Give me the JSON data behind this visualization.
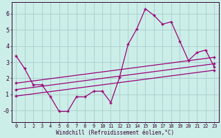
{
  "xlabel": "Windchill (Refroidissement éolien,°C)",
  "bg_color": "#cceee8",
  "grid_color": "#aacccc",
  "line_color": "#990077",
  "spine_color": "#330033",
  "tick_color": "#330033",
  "xlim": [
    -0.5,
    23.5
  ],
  "ylim": [
    -0.7,
    6.7
  ],
  "yticks": [
    0,
    1,
    2,
    3,
    4,
    5,
    6
  ],
  "ytick_labels": [
    "-0",
    "1",
    "2",
    "3",
    "4",
    "5",
    "6"
  ],
  "xticks": [
    0,
    1,
    2,
    3,
    4,
    5,
    6,
    7,
    8,
    9,
    10,
    11,
    12,
    13,
    14,
    15,
    16,
    17,
    18,
    19,
    20,
    21,
    22,
    23
  ],
  "line1_x": [
    0,
    1,
    2,
    3,
    4,
    5,
    6,
    7,
    8,
    9,
    10,
    11,
    12,
    13,
    14,
    15,
    16,
    17,
    18,
    19,
    20,
    21,
    22,
    23
  ],
  "line1_y": [
    3.4,
    2.6,
    1.6,
    1.6,
    0.85,
    -0.05,
    -0.05,
    0.85,
    0.85,
    1.2,
    1.2,
    0.5,
    2.05,
    4.1,
    5.05,
    6.3,
    5.9,
    5.35,
    5.5,
    4.3,
    3.1,
    3.6,
    3.75,
    2.7
  ],
  "line2_x": [
    0,
    23
  ],
  "line2_y": [
    1.7,
    3.3
  ],
  "line3_x": [
    0,
    23
  ],
  "line3_y": [
    1.3,
    2.9
  ],
  "line4_x": [
    0,
    23
  ],
  "line4_y": [
    0.9,
    2.5
  ],
  "xlabel_fontsize": 5.5,
  "ytick_fontsize": 6,
  "xtick_fontsize": 5
}
